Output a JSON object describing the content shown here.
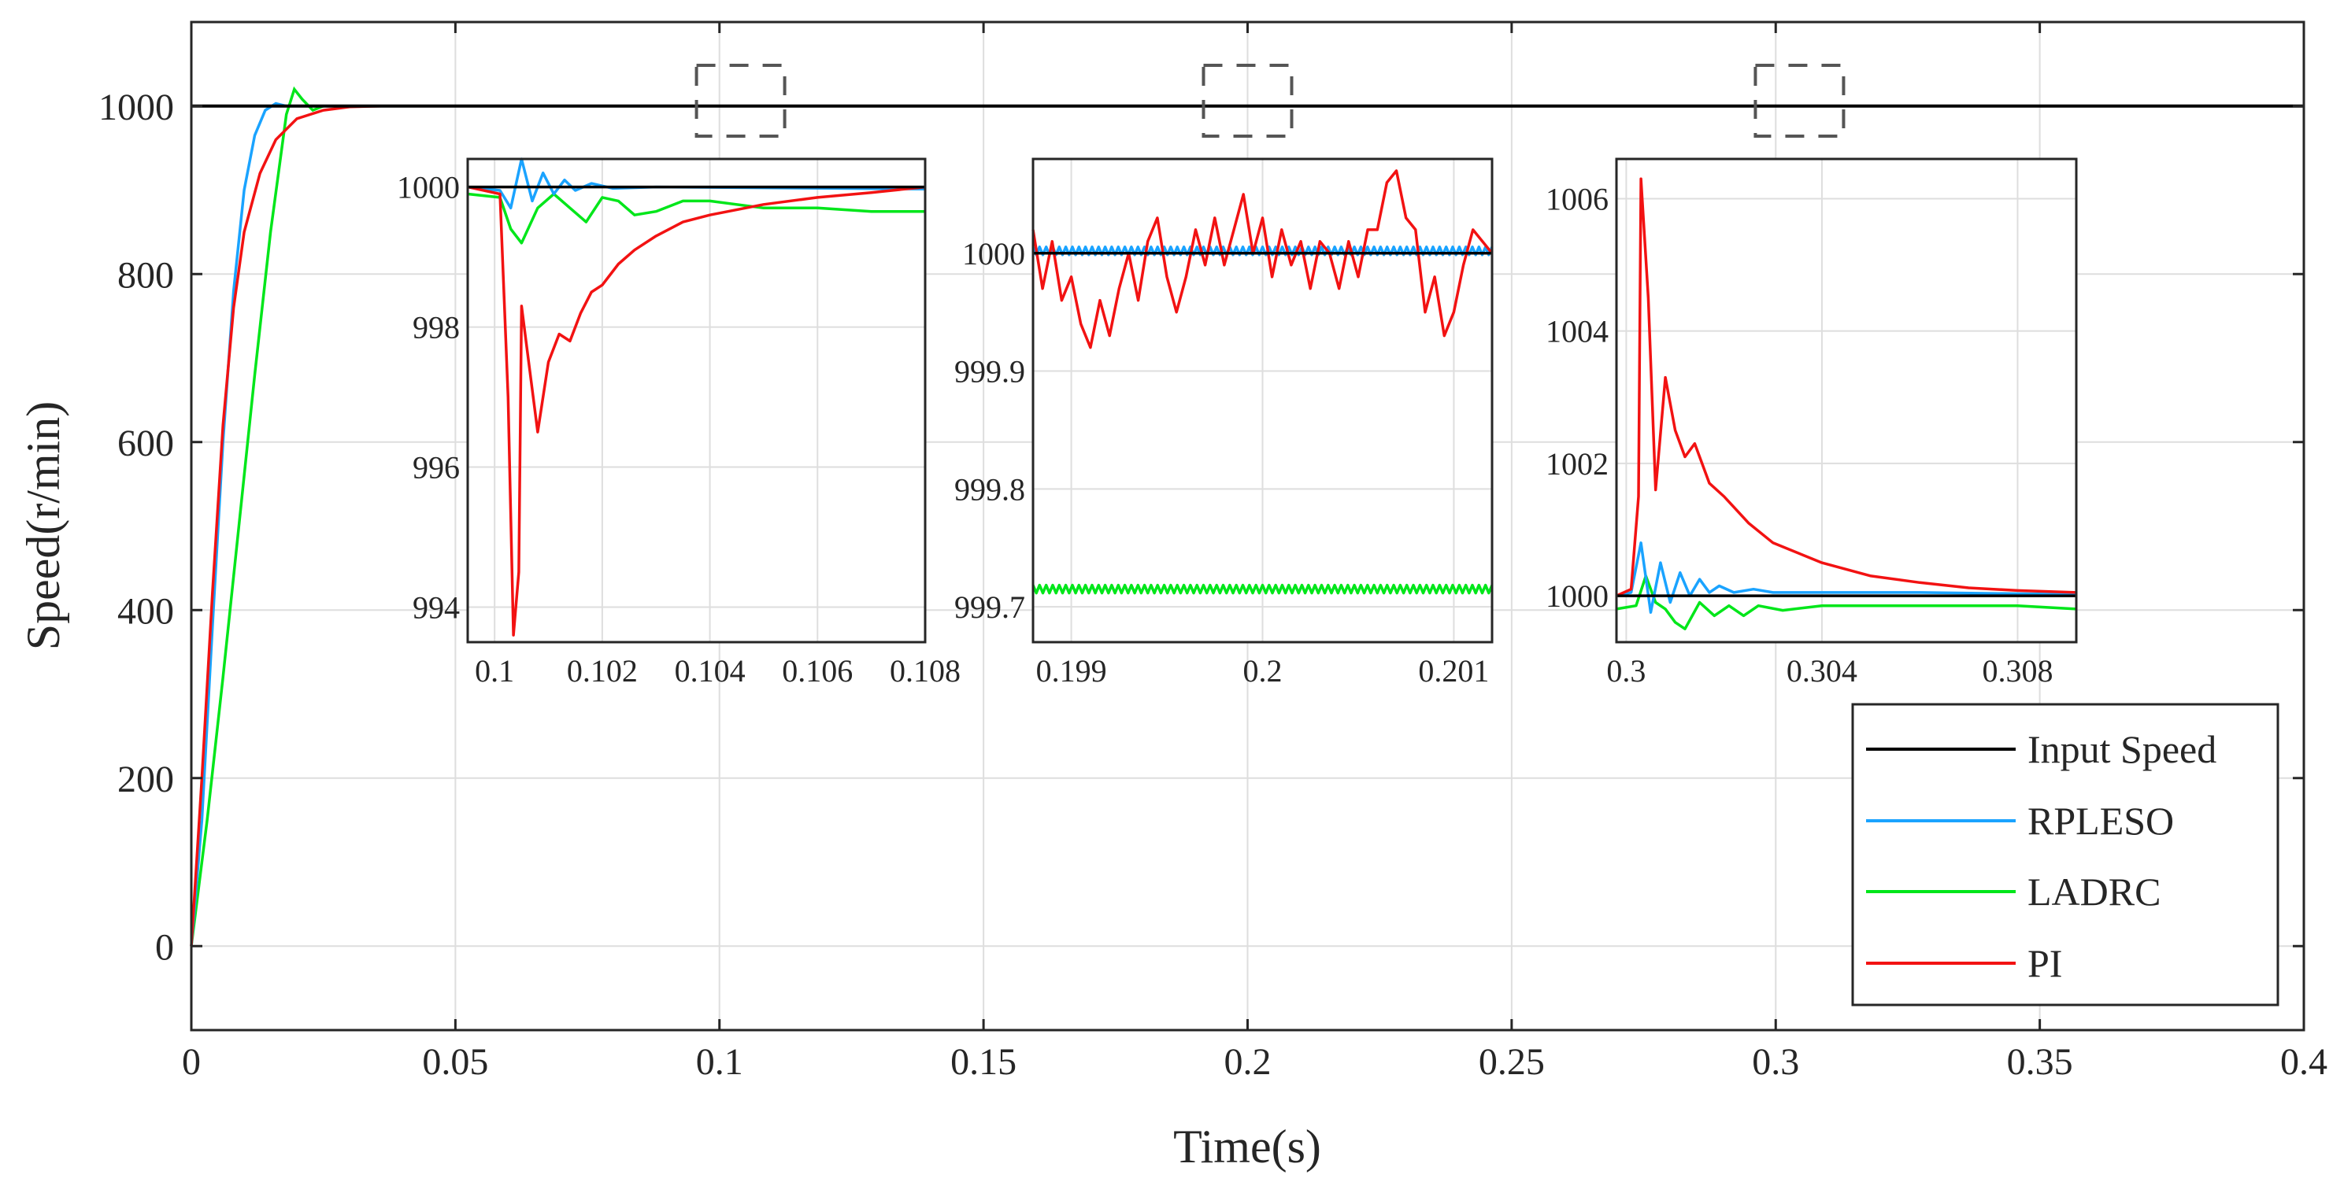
{
  "chart_data": {
    "type": "line",
    "title": "",
    "xlabel": "Time(s)",
    "ylabel": "Speed(r/min)",
    "xlim": [
      0,
      0.4
    ],
    "ylim": [
      -100,
      1100
    ],
    "grid": true,
    "legend_position": "bottom-right",
    "x_tick_labels": [
      "0",
      "0.05",
      "0.1",
      "0.15",
      "0.2",
      "0.25",
      "0.3",
      "0.35",
      "0.4"
    ],
    "y_tick_labels": [
      "0",
      "200",
      "400",
      "600",
      "800",
      "1000"
    ],
    "legend": [
      "Input Speed",
      "RPLESO",
      "LADRC",
      "PI"
    ],
    "colors": {
      "Input Speed": "#000000",
      "RPLESO": "#1aa3ff",
      "LADRC": "#00e61a",
      "PI": "#f21212"
    },
    "series": [
      {
        "name": "Input Speed",
        "color": "#000000",
        "points": [
          [
            0,
            1000
          ],
          [
            0.4,
            1000
          ]
        ]
      },
      {
        "name": "RPLESO",
        "color": "#1aa3ff",
        "points": [
          [
            0,
            0
          ],
          [
            0.002,
            150
          ],
          [
            0.004,
            380
          ],
          [
            0.006,
            600
          ],
          [
            0.008,
            780
          ],
          [
            0.01,
            900
          ],
          [
            0.012,
            965
          ],
          [
            0.014,
            995
          ],
          [
            0.016,
            1003
          ],
          [
            0.018,
            1000
          ],
          [
            0.4,
            1000
          ]
        ]
      },
      {
        "name": "LADRC",
        "color": "#00e61a",
        "points": [
          [
            0,
            0
          ],
          [
            0.003,
            150
          ],
          [
            0.006,
            320
          ],
          [
            0.009,
            500
          ],
          [
            0.012,
            680
          ],
          [
            0.015,
            850
          ],
          [
            0.018,
            990
          ],
          [
            0.0195,
            1020
          ],
          [
            0.021,
            1008
          ],
          [
            0.023,
            995
          ],
          [
            0.025,
            1000
          ],
          [
            0.03,
            1000
          ],
          [
            0.4,
            1000
          ]
        ]
      },
      {
        "name": "PI",
        "color": "#f21212",
        "points": [
          [
            0,
            0
          ],
          [
            0.002,
            200
          ],
          [
            0.004,
            420
          ],
          [
            0.006,
            620
          ],
          [
            0.008,
            760
          ],
          [
            0.01,
            850
          ],
          [
            0.013,
            920
          ],
          [
            0.016,
            960
          ],
          [
            0.02,
            985
          ],
          [
            0.025,
            995
          ],
          [
            0.03,
            999
          ],
          [
            0.036,
            1000
          ],
          [
            0.4,
            1000
          ]
        ]
      }
    ],
    "zoom_box_centers_x": [
      0.104,
      0.2,
      0.3045
    ],
    "insets": [
      {
        "xlim": [
          0.0995,
          0.108
        ],
        "ylim": [
          993.5,
          1000.4
        ],
        "x_tick_labels": [
          "0.1",
          "0.102",
          "0.104",
          "0.106",
          "0.108"
        ],
        "y_tick_labels": [
          "1000",
          "998",
          "996",
          "994"
        ],
        "series": [
          {
            "name": "Input Speed",
            "points": [
              [
                0.0995,
                1000
              ],
              [
                0.108,
                1000
              ]
            ]
          },
          {
            "name": "RPLESO",
            "points": [
              [
                0.0995,
                1000
              ],
              [
                0.1001,
                999.95
              ],
              [
                0.1003,
                999.7
              ],
              [
                0.1005,
                1000.4
              ],
              [
                0.1007,
                999.8
              ],
              [
                0.1009,
                1000.2
              ],
              [
                0.1011,
                999.9
              ],
              [
                0.1013,
                1000.1
              ],
              [
                0.1015,
                999.95
              ],
              [
                0.1018,
                1000.05
              ],
              [
                0.1022,
                999.98
              ],
              [
                0.103,
                1000
              ],
              [
                0.108,
                999.97
              ]
            ]
          },
          {
            "name": "LADRC",
            "points": [
              [
                0.0995,
                999.9
              ],
              [
                0.1001,
                999.85
              ],
              [
                0.1003,
                999.4
              ],
              [
                0.1005,
                999.2
              ],
              [
                0.1008,
                999.7
              ],
              [
                0.1011,
                999.9
              ],
              [
                0.1014,
                999.7
              ],
              [
                0.1017,
                999.5
              ],
              [
                0.102,
                999.85
              ],
              [
                0.1023,
                999.8
              ],
              [
                0.1026,
                999.6
              ],
              [
                0.103,
                999.65
              ],
              [
                0.1035,
                999.8
              ],
              [
                0.104,
                999.8
              ],
              [
                0.105,
                999.7
              ],
              [
                0.106,
                999.7
              ],
              [
                0.107,
                999.65
              ],
              [
                0.108,
                999.65
              ]
            ]
          },
          {
            "name": "PI",
            "points": [
              [
                0.0995,
                1000
              ],
              [
                0.1001,
                999.9
              ],
              [
                0.10025,
                997
              ],
              [
                0.10035,
                993.6
              ],
              [
                0.10045,
                994.5
              ],
              [
                0.1005,
                998.3
              ],
              [
                0.1006,
                997.7
              ],
              [
                0.1008,
                996.5
              ],
              [
                0.101,
                997.5
              ],
              [
                0.1012,
                997.9
              ],
              [
                0.1014,
                997.8
              ],
              [
                0.1016,
                998.2
              ],
              [
                0.1018,
                998.5
              ],
              [
                0.102,
                998.6
              ],
              [
                0.1023,
                998.9
              ],
              [
                0.1026,
                999.1
              ],
              [
                0.103,
                999.3
              ],
              [
                0.1035,
                999.5
              ],
              [
                0.104,
                999.6
              ],
              [
                0.105,
                999.75
              ],
              [
                0.106,
                999.85
              ],
              [
                0.107,
                999.92
              ],
              [
                0.108,
                1000
              ]
            ]
          }
        ]
      },
      {
        "xlim": [
          0.1988,
          0.2012
        ],
        "ylim": [
          999.67,
          1000.08
        ],
        "x_tick_labels": [
          "0.199",
          "0.2",
          "0.201"
        ],
        "y_tick_labels": [
          "1000",
          "999.9",
          "999.8",
          "999.7"
        ],
        "series": [
          {
            "name": "Input Speed",
            "points": [
              [
                0.1988,
                1000
              ],
              [
                0.2012,
                1000
              ]
            ]
          },
          {
            "name": "RPLESO",
            "noise": "fine",
            "points": [
              [
                0.1988,
                1000.002
              ],
              [
                0.2012,
                1000.002
              ]
            ]
          },
          {
            "name": "LADRC",
            "noise": "fine",
            "points": [
              [
                0.1988,
                999.715
              ],
              [
                0.2012,
                999.715
              ]
            ]
          },
          {
            "name": "PI",
            "points": [
              [
                0.1988,
                1000.02
              ],
              [
                0.19885,
                999.97
              ],
              [
                0.1989,
                1000.01
              ],
              [
                0.19895,
                999.96
              ],
              [
                0.199,
                999.98
              ],
              [
                0.19905,
                999.94
              ],
              [
                0.1991,
                999.92
              ],
              [
                0.19915,
                999.96
              ],
              [
                0.1992,
                999.93
              ],
              [
                0.19925,
                999.97
              ],
              [
                0.1993,
                1000
              ],
              [
                0.19935,
                999.96
              ],
              [
                0.1994,
                1000.01
              ],
              [
                0.19945,
                1000.03
              ],
              [
                0.1995,
                999.98
              ],
              [
                0.19955,
                999.95
              ],
              [
                0.1996,
                999.98
              ],
              [
                0.19965,
                1000.02
              ],
              [
                0.1997,
                999.99
              ],
              [
                0.19975,
                1000.03
              ],
              [
                0.1998,
                999.99
              ],
              [
                0.19985,
                1000.02
              ],
              [
                0.1999,
                1000.05
              ],
              [
                0.19995,
                1000
              ],
              [
                0.2,
                1000.03
              ],
              [
                0.20005,
                999.98
              ],
              [
                0.2001,
                1000.02
              ],
              [
                0.20015,
                999.99
              ],
              [
                0.2002,
                1000.01
              ],
              [
                0.20025,
                999.97
              ],
              [
                0.2003,
                1000.01
              ],
              [
                0.20035,
                1000
              ],
              [
                0.2004,
                999.97
              ],
              [
                0.20045,
                1000.01
              ],
              [
                0.2005,
                999.98
              ],
              [
                0.20055,
                1000.02
              ],
              [
                0.2006,
                1000.02
              ],
              [
                0.20065,
                1000.06
              ],
              [
                0.2007,
                1000.07
              ],
              [
                0.20075,
                1000.03
              ],
              [
                0.2008,
                1000.02
              ],
              [
                0.20085,
                999.95
              ],
              [
                0.2009,
                999.98
              ],
              [
                0.20095,
                999.93
              ],
              [
                0.201,
                999.95
              ],
              [
                0.20105,
                999.99
              ],
              [
                0.2011,
                1000.02
              ],
              [
                0.2012,
                1000
              ]
            ]
          }
        ]
      },
      {
        "xlim": [
          0.2998,
          0.3092
        ],
        "ylim": [
          999.3,
          1006.6
        ],
        "x_tick_labels": [
          "0.3",
          "0.304",
          "0.308"
        ],
        "y_tick_labels": [
          "1006",
          "1004",
          "1002",
          "1000"
        ],
        "series": [
          {
            "name": "Input Speed",
            "points": [
              [
                0.2998,
                1000
              ],
              [
                0.3092,
                1000
              ]
            ]
          },
          {
            "name": "RPLESO",
            "points": [
              [
                0.2998,
                1000
              ],
              [
                0.3001,
                1000.05
              ],
              [
                0.3003,
                1000.8
              ],
              [
                0.3005,
                999.75
              ],
              [
                0.3007,
                1000.5
              ],
              [
                0.3009,
                999.9
              ],
              [
                0.3011,
                1000.35
              ],
              [
                0.3013,
                1000
              ],
              [
                0.3015,
                1000.25
              ],
              [
                0.3017,
                1000.05
              ],
              [
                0.3019,
                1000.15
              ],
              [
                0.3022,
                1000.05
              ],
              [
                0.3026,
                1000.1
              ],
              [
                0.303,
                1000.05
              ],
              [
                0.304,
                1000.05
              ],
              [
                0.306,
                1000.05
              ],
              [
                0.3092,
                1000.02
              ]
            ]
          },
          {
            "name": "LADRC",
            "points": [
              [
                0.2998,
                999.8
              ],
              [
                0.3002,
                999.85
              ],
              [
                0.3004,
                1000.3
              ],
              [
                0.3006,
                999.9
              ],
              [
                0.3008,
                999.8
              ],
              [
                0.301,
                999.6
              ],
              [
                0.3012,
                999.5
              ],
              [
                0.3015,
                999.9
              ],
              [
                0.3018,
                999.7
              ],
              [
                0.3021,
                999.85
              ],
              [
                0.3024,
                999.7
              ],
              [
                0.3027,
                999.85
              ],
              [
                0.3032,
                999.78
              ],
              [
                0.304,
                999.85
              ],
              [
                0.306,
                999.85
              ],
              [
                0.308,
                999.85
              ],
              [
                0.3092,
                999.8
              ]
            ]
          },
          {
            "name": "PI",
            "points": [
              [
                0.2998,
                1000
              ],
              [
                0.3001,
                1000.1
              ],
              [
                0.30025,
                1001.5
              ],
              [
                0.3003,
                1006.3
              ],
              [
                0.30045,
                1004.5
              ],
              [
                0.3006,
                1001.6
              ],
              [
                0.3008,
                1003.3
              ],
              [
                0.301,
                1002.5
              ],
              [
                0.3012,
                1002.1
              ],
              [
                0.3014,
                1002.3
              ],
              [
                0.3017,
                1001.7
              ],
              [
                0.302,
                1001.5
              ],
              [
                0.3025,
                1001.1
              ],
              [
                0.303,
                1000.8
              ],
              [
                0.304,
                1000.5
              ],
              [
                0.305,
                1000.3
              ],
              [
                0.306,
                1000.2
              ],
              [
                0.307,
                1000.12
              ],
              [
                0.308,
                1000.08
              ],
              [
                0.3092,
                1000.05
              ]
            ]
          }
        ]
      }
    ]
  }
}
